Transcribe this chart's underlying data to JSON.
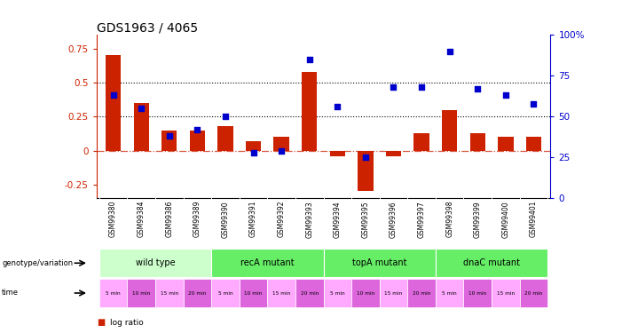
{
  "title": "GDS1963 / 4065",
  "samples": [
    "GSM99380",
    "GSM99384",
    "GSM99386",
    "GSM99389",
    "GSM99390",
    "GSM99391",
    "GSM99392",
    "GSM99393",
    "GSM99394",
    "GSM99395",
    "GSM99396",
    "GSM99397",
    "GSM99398",
    "GSM99399",
    "GSM99400",
    "GSM99401"
  ],
  "log_ratio": [
    0.7,
    0.35,
    0.15,
    0.15,
    0.18,
    0.07,
    0.1,
    0.58,
    -0.04,
    -0.3,
    -0.04,
    0.13,
    0.3,
    0.13,
    0.1,
    0.1
  ],
  "pct_rank": [
    63,
    55,
    38,
    42,
    50,
    28,
    29,
    85,
    56,
    25,
    68,
    68,
    90,
    67,
    63,
    58
  ],
  "bar_color": "#cc2200",
  "dot_color": "#0000cc",
  "genotype_groups": [
    {
      "label": "wild type",
      "start": 0,
      "end": 4,
      "color": "#ccffcc"
    },
    {
      "label": "recA mutant",
      "start": 4,
      "end": 8,
      "color": "#66ee66"
    },
    {
      "label": "topA mutant",
      "start": 8,
      "end": 12,
      "color": "#66ee66"
    },
    {
      "label": "dnaC mutant",
      "start": 12,
      "end": 16,
      "color": "#66ee66"
    }
  ],
  "time_labels": [
    "5 min",
    "10 min",
    "15 min",
    "20 min",
    "5 min",
    "10 min",
    "15 min",
    "20 min",
    "5 min",
    "10 min",
    "15 min",
    "20 min",
    "5 min",
    "10 min",
    "15 min",
    "20 min"
  ],
  "time_color_light": "#ffaaff",
  "time_color_dark": "#dd66dd",
  "ylim_left": [
    -0.35,
    0.85
  ],
  "ylim_right": [
    0,
    100
  ],
  "left_yticks": [
    -0.25,
    0,
    0.25,
    0.5,
    0.75
  ],
  "right_yticks": [
    0,
    25,
    50,
    75,
    100
  ],
  "hline_y": [
    0.25,
    0.5
  ],
  "background_color": "#ffffff",
  "xlabels_bg": "#cccccc"
}
